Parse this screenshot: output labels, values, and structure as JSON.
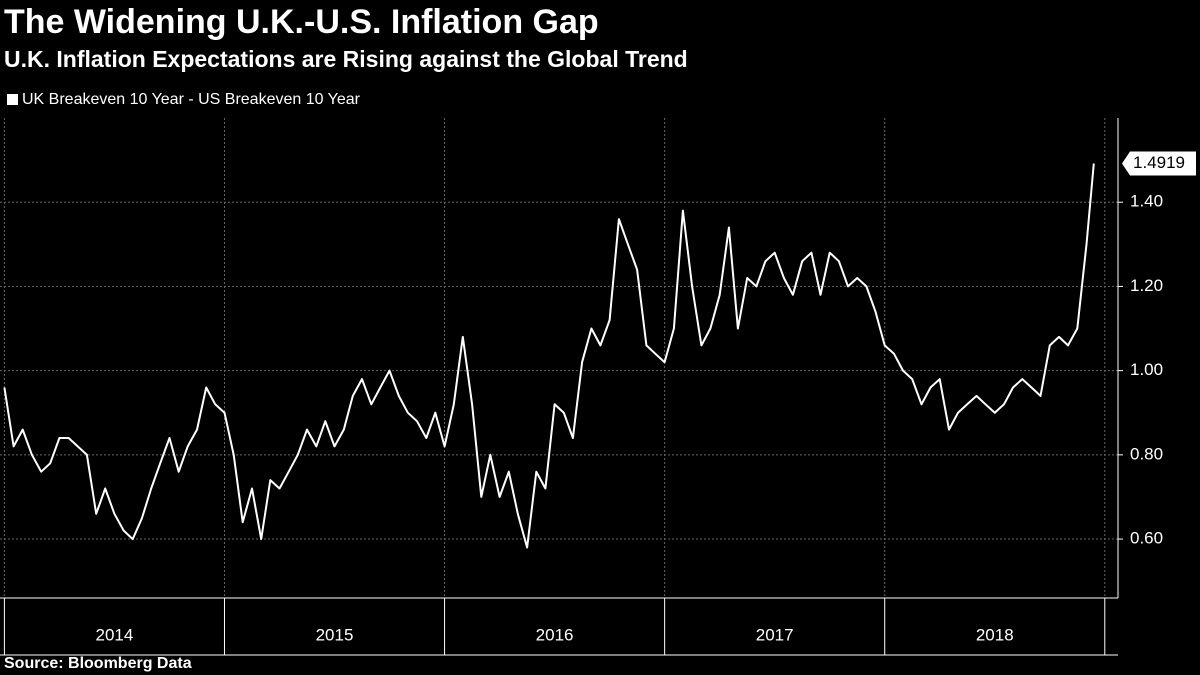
{
  "chart_data": {
    "type": "line",
    "title": "The Widening U.K.-U.S. Inflation Gap",
    "subtitle": "U.K. Inflation Expectations are Rising against the Global Trend",
    "source": "Source: Bloomberg Data",
    "x": [
      2014,
      2014.042,
      2014.083,
      2014.125,
      2014.167,
      2014.208,
      2014.25,
      2014.292,
      2014.333,
      2014.375,
      2014.417,
      2014.458,
      2014.5,
      2014.542,
      2014.583,
      2014.625,
      2014.667,
      2014.708,
      2014.75,
      2014.792,
      2014.833,
      2014.875,
      2014.917,
      2014.958,
      2015,
      2015.042,
      2015.083,
      2015.125,
      2015.167,
      2015.208,
      2015.25,
      2015.292,
      2015.333,
      2015.375,
      2015.417,
      2015.458,
      2015.5,
      2015.542,
      2015.583,
      2015.625,
      2015.667,
      2015.708,
      2015.75,
      2015.792,
      2015.833,
      2015.875,
      2015.917,
      2015.958,
      2016,
      2016.042,
      2016.083,
      2016.125,
      2016.167,
      2016.208,
      2016.25,
      2016.292,
      2016.333,
      2016.375,
      2016.417,
      2016.458,
      2016.5,
      2016.542,
      2016.583,
      2016.625,
      2016.667,
      2016.708,
      2016.75,
      2016.792,
      2016.833,
      2016.875,
      2016.917,
      2016.958,
      2017,
      2017.042,
      2017.083,
      2017.125,
      2017.167,
      2017.208,
      2017.25,
      2017.292,
      2017.333,
      2017.375,
      2017.417,
      2017.458,
      2017.5,
      2017.542,
      2017.583,
      2017.625,
      2017.667,
      2017.708,
      2017.75,
      2017.792,
      2017.833,
      2017.875,
      2017.917,
      2017.958,
      2018,
      2018.042,
      2018.083,
      2018.125,
      2018.167,
      2018.208,
      2018.25,
      2018.292,
      2018.333,
      2018.375,
      2018.417,
      2018.458,
      2018.5,
      2018.542,
      2018.583,
      2018.625,
      2018.667,
      2018.708,
      2018.75,
      2018.792,
      2018.833,
      2018.875,
      2018.917,
      2018.95
    ],
    "series": [
      {
        "name": "UK Breakeven 10 Year - US Breakeven 10 Year",
        "color": "#ffffff",
        "values": [
          0.96,
          0.82,
          0.86,
          0.8,
          0.76,
          0.78,
          0.84,
          0.84,
          0.82,
          0.8,
          0.66,
          0.72,
          0.66,
          0.62,
          0.6,
          0.65,
          0.72,
          0.78,
          0.84,
          0.76,
          0.82,
          0.86,
          0.96,
          0.92,
          0.9,
          0.8,
          0.64,
          0.72,
          0.6,
          0.74,
          0.72,
          0.76,
          0.8,
          0.86,
          0.82,
          0.88,
          0.82,
          0.86,
          0.94,
          0.98,
          0.92,
          0.96,
          1.0,
          0.94,
          0.9,
          0.88,
          0.84,
          0.9,
          0.82,
          0.92,
          1.08,
          0.92,
          0.7,
          0.8,
          0.7,
          0.76,
          0.66,
          0.58,
          0.76,
          0.72,
          0.92,
          0.9,
          0.84,
          1.02,
          1.1,
          1.06,
          1.12,
          1.36,
          1.3,
          1.24,
          1.06,
          1.04,
          1.02,
          1.1,
          1.38,
          1.2,
          1.06,
          1.1,
          1.18,
          1.34,
          1.1,
          1.22,
          1.2,
          1.26,
          1.28,
          1.22,
          1.18,
          1.26,
          1.28,
          1.18,
          1.28,
          1.26,
          1.2,
          1.22,
          1.2,
          1.14,
          1.06,
          1.04,
          1.0,
          0.98,
          0.92,
          0.96,
          0.98,
          0.86,
          0.9,
          0.92,
          0.94,
          0.92,
          0.9,
          0.92,
          0.96,
          0.98,
          0.96,
          0.94,
          1.06,
          1.08,
          1.06,
          1.1,
          1.3,
          1.4919
        ]
      }
    ],
    "xlim": [
      2013.98,
      2019.06
    ],
    "xticks": [
      2014,
      2015,
      2016,
      2017,
      2018,
      2019
    ],
    "ylim": [
      0.46,
      1.6
    ],
    "yticks": [
      {
        "value": 0.6,
        "label": "0.60"
      },
      {
        "value": 0.8,
        "label": "0.80"
      },
      {
        "value": 1.0,
        "label": "1.00"
      },
      {
        "value": 1.2,
        "label": "1.20"
      },
      {
        "value": 1.4,
        "label": "1.40"
      }
    ],
    "grid": true
  }
}
